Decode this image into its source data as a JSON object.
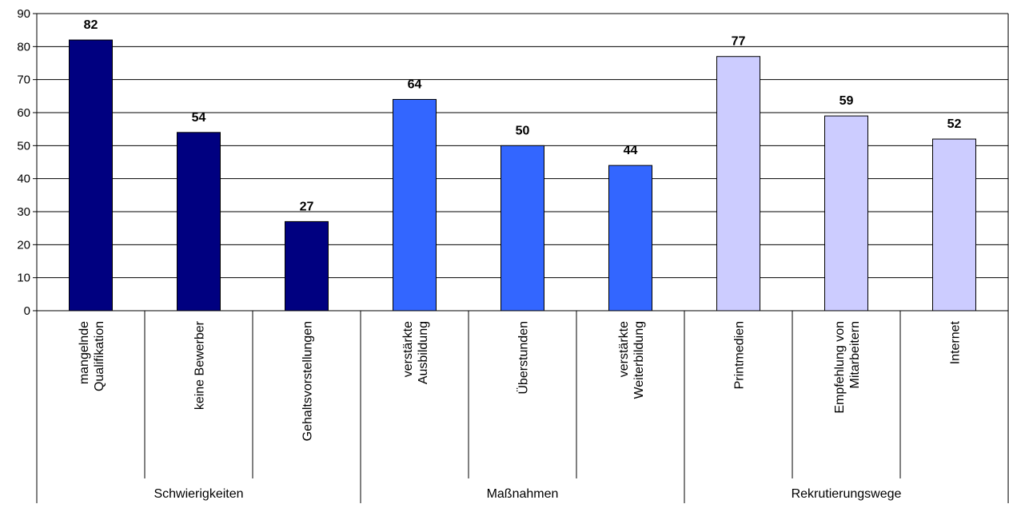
{
  "chart_data": {
    "type": "bar",
    "categories": [
      "mangelnde Qualifikation",
      "keine Bewerber",
      "Gehaltsvorstellungen",
      "verstärkte Ausbildung",
      "Überstunden",
      "verstärkte Weiterbildung",
      "Printmedien",
      "Empfehlung von Mitarbeitern",
      "Internet"
    ],
    "category_lines": [
      [
        "mangelnde",
        "Qualifikation"
      ],
      [
        "keine Bewerber"
      ],
      [
        "Gehaltsvorstellungen"
      ],
      [
        "verstärkte",
        "Ausbildung"
      ],
      [
        "Überstunden"
      ],
      [
        "verstärkte",
        "Weiterbildung"
      ],
      [
        "Printmedien"
      ],
      [
        "Empfehlung von",
        "Mitarbeitern"
      ],
      [
        "Internet"
      ]
    ],
    "values": [
      82,
      54,
      27,
      64,
      50,
      44,
      77,
      59,
      52
    ],
    "groups": [
      {
        "label": "Schwierigkeiten",
        "count": 3,
        "color": "#000080"
      },
      {
        "label": "Maßnahmen",
        "count": 3,
        "color": "#3366FF"
      },
      {
        "label": "Rekrutierungswege",
        "count": 3,
        "color": "#CCCCFF"
      }
    ],
    "title": "",
    "xlabel": "",
    "ylabel": "",
    "ylim": [
      0,
      90
    ],
    "yticks": [
      0,
      10,
      20,
      30,
      40,
      50,
      60,
      70,
      80,
      90
    ],
    "grid": true,
    "legend": "none",
    "data_labels": true
  }
}
